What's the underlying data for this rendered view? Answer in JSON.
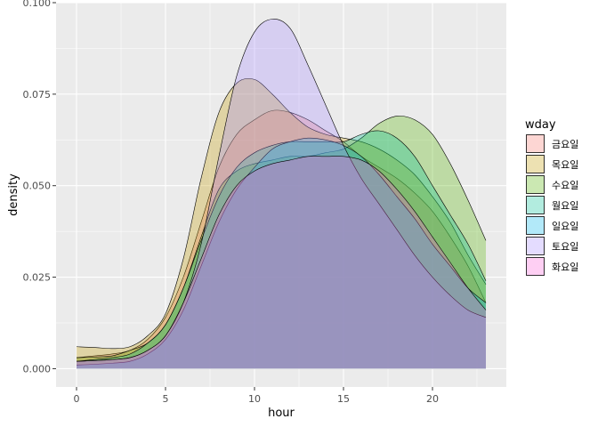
{
  "chart_data": {
    "type": "area",
    "subtype": "density",
    "xlabel": "hour",
    "ylabel": "density",
    "xlim": [
      -1.15,
      24.15
    ],
    "ylim": [
      -0.005,
      0.1
    ],
    "xticks": [
      0,
      5,
      10,
      15,
      20
    ],
    "xtick_labels": [
      "0",
      "5",
      "10",
      "15",
      "20"
    ],
    "yticks": [
      0.0,
      0.025,
      0.05,
      0.075,
      0.1
    ],
    "ytick_labels": [
      "0.000",
      "0.025",
      "0.050",
      "0.075",
      "0.100"
    ],
    "grid": true,
    "panel_background": "#ebebeb",
    "fill_alpha": 0.3,
    "legend": {
      "title": "wday",
      "position": "right"
    },
    "x": [
      0,
      1,
      2,
      3,
      4,
      5,
      6,
      7,
      8,
      9,
      10,
      11,
      12,
      13,
      14,
      15,
      16,
      17,
      18,
      19,
      20,
      21,
      22,
      23
    ],
    "series": [
      {
        "name": "금요일",
        "color": "#F8766D",
        "values": [
          0.003,
          0.0035,
          0.004,
          0.005,
          0.008,
          0.014,
          0.025,
          0.04,
          0.055,
          0.064,
          0.068,
          0.0705,
          0.07,
          0.068,
          0.065,
          0.062,
          0.058,
          0.055,
          0.052,
          0.048,
          0.043,
          0.036,
          0.028,
          0.018
        ]
      },
      {
        "name": "목요일",
        "color": "#C49A00",
        "values": [
          0.006,
          0.0058,
          0.0055,
          0.006,
          0.009,
          0.015,
          0.03,
          0.052,
          0.07,
          0.078,
          0.079,
          0.075,
          0.07,
          0.066,
          0.064,
          0.063,
          0.062,
          0.06,
          0.057,
          0.053,
          0.047,
          0.04,
          0.031,
          0.023
        ]
      },
      {
        "name": "수요일",
        "color": "#53B400",
        "values": [
          0.003,
          0.0032,
          0.0035,
          0.005,
          0.007,
          0.012,
          0.022,
          0.036,
          0.049,
          0.054,
          0.056,
          0.057,
          0.058,
          0.058,
          0.059,
          0.06,
          0.063,
          0.067,
          0.069,
          0.068,
          0.064,
          0.056,
          0.046,
          0.035
        ]
      },
      {
        "name": "월요일",
        "color": "#00C094",
        "values": [
          0.002,
          0.0025,
          0.003,
          0.004,
          0.007,
          0.012,
          0.022,
          0.035,
          0.047,
          0.055,
          0.059,
          0.061,
          0.062,
          0.062,
          0.062,
          0.062,
          0.064,
          0.065,
          0.063,
          0.058,
          0.05,
          0.042,
          0.034,
          0.024
        ]
      },
      {
        "name": "일요일",
        "color": "#00B6EB",
        "values": [
          0.001,
          0.0012,
          0.0015,
          0.002,
          0.004,
          0.008,
          0.016,
          0.028,
          0.04,
          0.049,
          0.055,
          0.06,
          0.062,
          0.063,
          0.0625,
          0.061,
          0.058,
          0.053,
          0.047,
          0.041,
          0.034,
          0.028,
          0.022,
          0.018
        ]
      },
      {
        "name": "토요일",
        "color": "#A58AFF",
        "values": [
          0.002,
          0.0022,
          0.0025,
          0.003,
          0.005,
          0.009,
          0.018,
          0.034,
          0.058,
          0.08,
          0.092,
          0.0955,
          0.093,
          0.083,
          0.072,
          0.061,
          0.052,
          0.045,
          0.038,
          0.031,
          0.025,
          0.02,
          0.016,
          0.014
        ]
      },
      {
        "name": "화요일",
        "color": "#FB61D7",
        "values": [
          0.002,
          0.0022,
          0.0025,
          0.003,
          0.005,
          0.009,
          0.018,
          0.03,
          0.042,
          0.05,
          0.054,
          0.056,
          0.057,
          0.058,
          0.058,
          0.058,
          0.057,
          0.054,
          0.049,
          0.043,
          0.036,
          0.029,
          0.022,
          0.016
        ]
      }
    ]
  }
}
